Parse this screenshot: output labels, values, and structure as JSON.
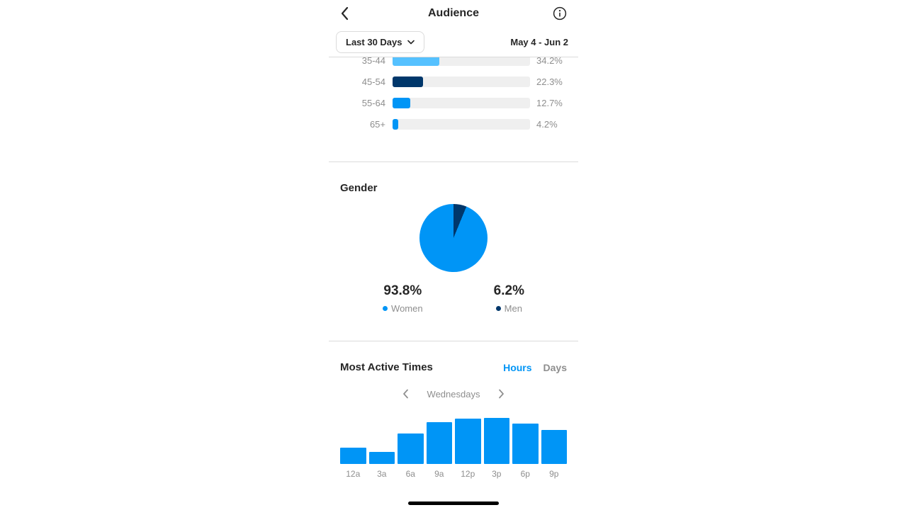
{
  "colors": {
    "accent_blue": "#0095F6",
    "light_blue": "#55C1FF",
    "navy": "#00376B",
    "track_gray": "#EFEFEF",
    "text_gray": "#8E8E8E"
  },
  "header": {
    "title": "Audience",
    "back_icon": "chevron-left-icon",
    "info_icon": "info-icon"
  },
  "filter_bar": {
    "range_button_label": "Last 30 Days",
    "date_range": "May 4 - Jun 2"
  },
  "age_chart": {
    "rows": [
      {
        "label": "35-44",
        "value": "34.2%",
        "percent": 34.2,
        "color": "#55C1FF",
        "partially_visible": true
      },
      {
        "label": "45-54",
        "value": "22.3%",
        "percent": 22.3,
        "color": "#00376B"
      },
      {
        "label": "55-64",
        "value": "12.7%",
        "percent": 12.7,
        "color": "#0095F6"
      },
      {
        "label": "65+",
        "value": "4.2%",
        "percent": 4.2,
        "color": "#0095F6"
      }
    ]
  },
  "gender": {
    "title": "Gender",
    "slices": [
      {
        "label": "Women",
        "value": "93.8%",
        "percent": 93.8,
        "color": "#0095F6"
      },
      {
        "label": "Men",
        "value": "6.2%",
        "percent": 6.2,
        "color": "#00376B"
      }
    ]
  },
  "active_times": {
    "title": "Most Active Times",
    "tabs": [
      {
        "label": "Hours",
        "active": true
      },
      {
        "label": "Days",
        "active": false
      }
    ],
    "day_label": "Wednesdays",
    "hours": [
      "12a",
      "3a",
      "6a",
      "9a",
      "12p",
      "3p",
      "6p",
      "9p"
    ],
    "heights_relative": [
      0.35,
      0.26,
      0.66,
      0.91,
      0.98,
      1.0,
      0.88,
      0.74
    ]
  },
  "chart_data": [
    {
      "type": "bar",
      "orientation": "horizontal",
      "title": "Audience age ranges (list scrolled, top row clipped)",
      "categories": [
        "35-44",
        "45-54",
        "55-64",
        "65+"
      ],
      "values": [
        34.2,
        22.3,
        12.7,
        4.2
      ],
      "unit": "%"
    },
    {
      "type": "pie",
      "title": "Gender",
      "labels": [
        "Women",
        "Men"
      ],
      "values": [
        93.8,
        6.2
      ],
      "unit": "%",
      "legend_position": "below"
    },
    {
      "type": "bar",
      "title": "Most Active Times - Hours (Wednesdays)",
      "categories": [
        "12a",
        "3a",
        "6a",
        "9a",
        "12p",
        "3p",
        "6p",
        "9p"
      ],
      "values_relative": [
        0.35,
        0.26,
        0.66,
        0.91,
        0.98,
        1.0,
        0.88,
        0.74
      ],
      "note": "y-axis unlabeled; values relative to tallest bar (3p)"
    }
  ]
}
